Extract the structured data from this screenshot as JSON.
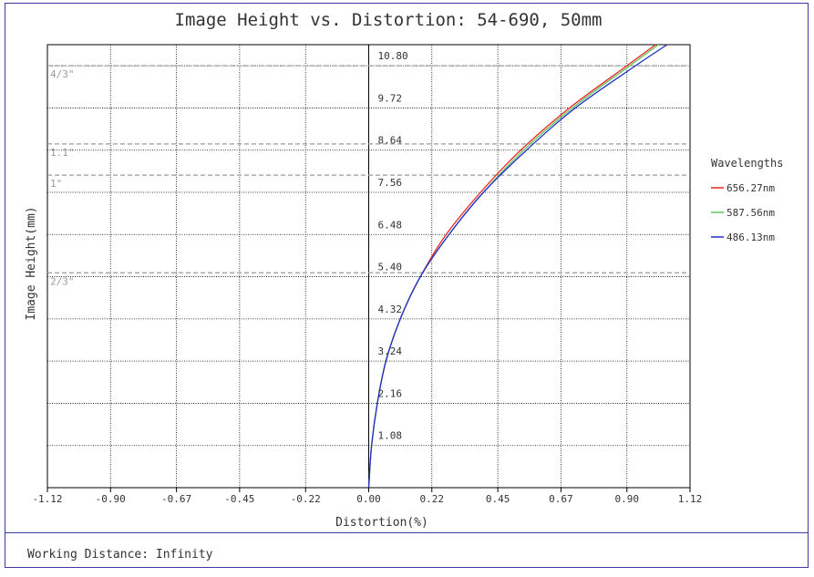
{
  "chart_data": {
    "type": "line",
    "title": "Image Height vs. Distortion: 54-690, 50mm",
    "xlabel": "Distortion(%)",
    "ylabel": "Image Height(mm)",
    "xlim": [
      -1.12,
      1.12
    ],
    "ylim": [
      0,
      11.34
    ],
    "x_ticks": [
      "-1.12",
      "-0.90",
      "-0.67",
      "-0.45",
      "-0.22",
      "0.00",
      "0.22",
      "0.45",
      "0.67",
      "0.90",
      "1.12"
    ],
    "x_tick_values": [
      -1.12,
      -0.9,
      -0.67,
      -0.45,
      -0.22,
      0.0,
      0.22,
      0.45,
      0.67,
      0.9,
      1.12
    ],
    "y_ticks": [
      "1.08",
      "2.16",
      "3.24",
      "4.32",
      "5.40",
      "6.48",
      "7.56",
      "8.64",
      "9.72",
      "10.80"
    ],
    "y_tick_values": [
      1.08,
      2.16,
      3.24,
      4.32,
      5.4,
      6.48,
      7.56,
      8.64,
      9.72,
      10.8
    ],
    "grid": true,
    "legend": {
      "title": "Wavelengths",
      "placement": "right"
    },
    "sensor_lines": [
      {
        "label": "4/3\"",
        "y": 10.8
      },
      {
        "label": "1.1\"",
        "y": 8.8
      },
      {
        "label": "1\"",
        "y": 8.0
      },
      {
        "label": "2/3\"",
        "y": 5.5
      }
    ],
    "series": [
      {
        "name": "656.27nm",
        "color": "#e8261e",
        "points": [
          [
            0,
            0
          ],
          [
            0.01,
            1.08
          ],
          [
            0.03,
            2.16
          ],
          [
            0.06,
            3.24
          ],
          [
            0.11,
            4.32
          ],
          [
            0.18,
            5.4
          ],
          [
            0.27,
            6.48
          ],
          [
            0.39,
            7.56
          ],
          [
            0.53,
            8.64
          ],
          [
            0.7,
            9.72
          ],
          [
            0.9,
            10.8
          ],
          [
            1.0,
            11.34
          ]
        ]
      },
      {
        "name": "587.56nm",
        "color": "#5ec45e",
        "points": [
          [
            0,
            0
          ],
          [
            0.01,
            1.08
          ],
          [
            0.03,
            2.16
          ],
          [
            0.06,
            3.24
          ],
          [
            0.11,
            4.32
          ],
          [
            0.18,
            5.4
          ],
          [
            0.28,
            6.48
          ],
          [
            0.4,
            7.56
          ],
          [
            0.54,
            8.64
          ],
          [
            0.71,
            9.72
          ],
          [
            0.91,
            10.8
          ],
          [
            1.01,
            11.34
          ]
        ]
      },
      {
        "name": "486.13nm",
        "color": "#1f2fc8",
        "points": [
          [
            0,
            0
          ],
          [
            0.01,
            1.08
          ],
          [
            0.03,
            2.16
          ],
          [
            0.06,
            3.24
          ],
          [
            0.11,
            4.32
          ],
          [
            0.18,
            5.4
          ],
          [
            0.28,
            6.48
          ],
          [
            0.4,
            7.56
          ],
          [
            0.55,
            8.64
          ],
          [
            0.72,
            9.72
          ],
          [
            0.93,
            10.8
          ],
          [
            1.04,
            11.34
          ]
        ]
      }
    ]
  },
  "footer": {
    "text": "Working Distance: Infinity"
  }
}
